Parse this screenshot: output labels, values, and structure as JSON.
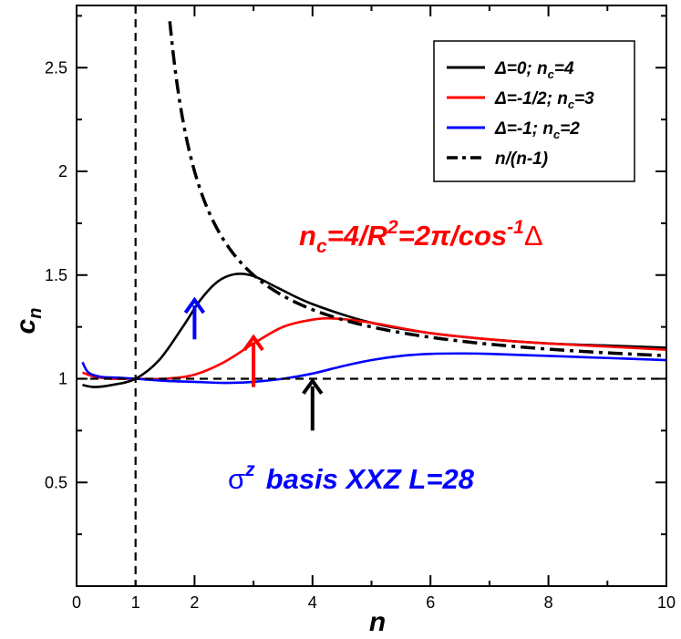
{
  "chart_data": {
    "type": "line",
    "title": "",
    "xlabel": "n",
    "ylabel": "c",
    "ylabel_sub": "n",
    "xlim": [
      0,
      10
    ],
    "ylim": [
      0,
      2.8
    ],
    "x_ticks": [
      0,
      2,
      4,
      6,
      8,
      10
    ],
    "x_minor_ticks": [
      1,
      3,
      5,
      7,
      9
    ],
    "y_ticks": [
      0.5,
      1,
      1.5,
      2,
      2.5
    ],
    "x_tick_labels": [
      "0",
      "1",
      "2",
      "4",
      "6",
      "8",
      "10"
    ],
    "x_tick_label_values": [
      0,
      1,
      2,
      4,
      6,
      8,
      10
    ],
    "y_tick_labels": [
      "0.5",
      "1",
      "1.5",
      "2",
      "2.5"
    ],
    "grid": false,
    "legend_position": "top-right",
    "series": [
      {
        "name": "Δ=0;  n",
        "name_sub": "c",
        "name_suffix": "=4",
        "color": "#000000",
        "style": "solid",
        "x": [
          0.1,
          0.3,
          0.6,
          1.0,
          1.4,
          1.8,
          2.1,
          2.4,
          2.7,
          3.0,
          3.4,
          4.0,
          5.0,
          6.0,
          7.0,
          8.0,
          9.0,
          10.0
        ],
        "y": [
          0.97,
          0.96,
          0.97,
          1.0,
          1.09,
          1.25,
          1.38,
          1.47,
          1.505,
          1.495,
          1.44,
          1.36,
          1.27,
          1.22,
          1.19,
          1.17,
          1.16,
          1.15
        ]
      },
      {
        "name": "Δ=-1/2;  n",
        "name_sub": "c",
        "name_suffix": "=3",
        "color": "#ff0000",
        "style": "solid",
        "x": [
          0.1,
          0.3,
          0.6,
          1.0,
          1.5,
          2.0,
          2.5,
          3.0,
          3.5,
          4.0,
          4.4,
          5.0,
          6.0,
          7.0,
          8.0,
          9.0,
          10.0
        ],
        "y": [
          1.03,
          1.01,
          1.0,
          1.0,
          1.0,
          1.02,
          1.08,
          1.17,
          1.25,
          1.285,
          1.29,
          1.27,
          1.22,
          1.19,
          1.17,
          1.155,
          1.14
        ]
      },
      {
        "name": "Δ=-1;  n",
        "name_sub": "c",
        "name_suffix": "=2",
        "color": "#0000ff",
        "style": "solid",
        "x": [
          0.1,
          0.2,
          0.4,
          0.7,
          1.0,
          1.5,
          2.0,
          2.5,
          3.0,
          3.5,
          4.0,
          4.5,
          5.0,
          5.5,
          6.0,
          6.5,
          7.0,
          8.0,
          9.0,
          10.0
        ],
        "y": [
          1.08,
          1.03,
          1.01,
          1.005,
          1.0,
          0.99,
          0.985,
          0.98,
          0.985,
          1.0,
          1.025,
          1.06,
          1.09,
          1.11,
          1.12,
          1.122,
          1.12,
          1.11,
          1.1,
          1.09
        ]
      },
      {
        "name": "n/(n-1)",
        "name_sub": "",
        "name_suffix": "",
        "color": "#000000",
        "style": "dashdot",
        "function": "n/(n-1)",
        "x_range": [
          1.58,
          10
        ]
      }
    ],
    "reference_lines": [
      {
        "orientation": "vertical",
        "value": 1,
        "style": "dashed",
        "color": "#000000"
      },
      {
        "orientation": "horizontal",
        "value": 1,
        "style": "dashed",
        "color": "#000000"
      }
    ],
    "arrows": [
      {
        "x": 2.0,
        "y_from": 1.19,
        "y_to": 1.38,
        "color": "#0000ff"
      },
      {
        "x": 3.0,
        "y_from": 0.96,
        "y_to": 1.2,
        "color": "#ff0000"
      },
      {
        "x": 4.0,
        "y_from": 0.75,
        "y_to": 0.99,
        "color": "#000000"
      }
    ],
    "annotations": {
      "formula": {
        "n": "n",
        "n_sub": "c",
        "eq1": "=4/R",
        "sup2": "2",
        "eq2": "=2π/cos",
        "sup_m1": "-1",
        "delta": "Δ",
        "color": "#ff0000"
      },
      "basis": {
        "sigma": "σ",
        "sigma_sup": "z",
        "text": "basis XXZ  L=28",
        "color": "#0000ff"
      }
    }
  }
}
